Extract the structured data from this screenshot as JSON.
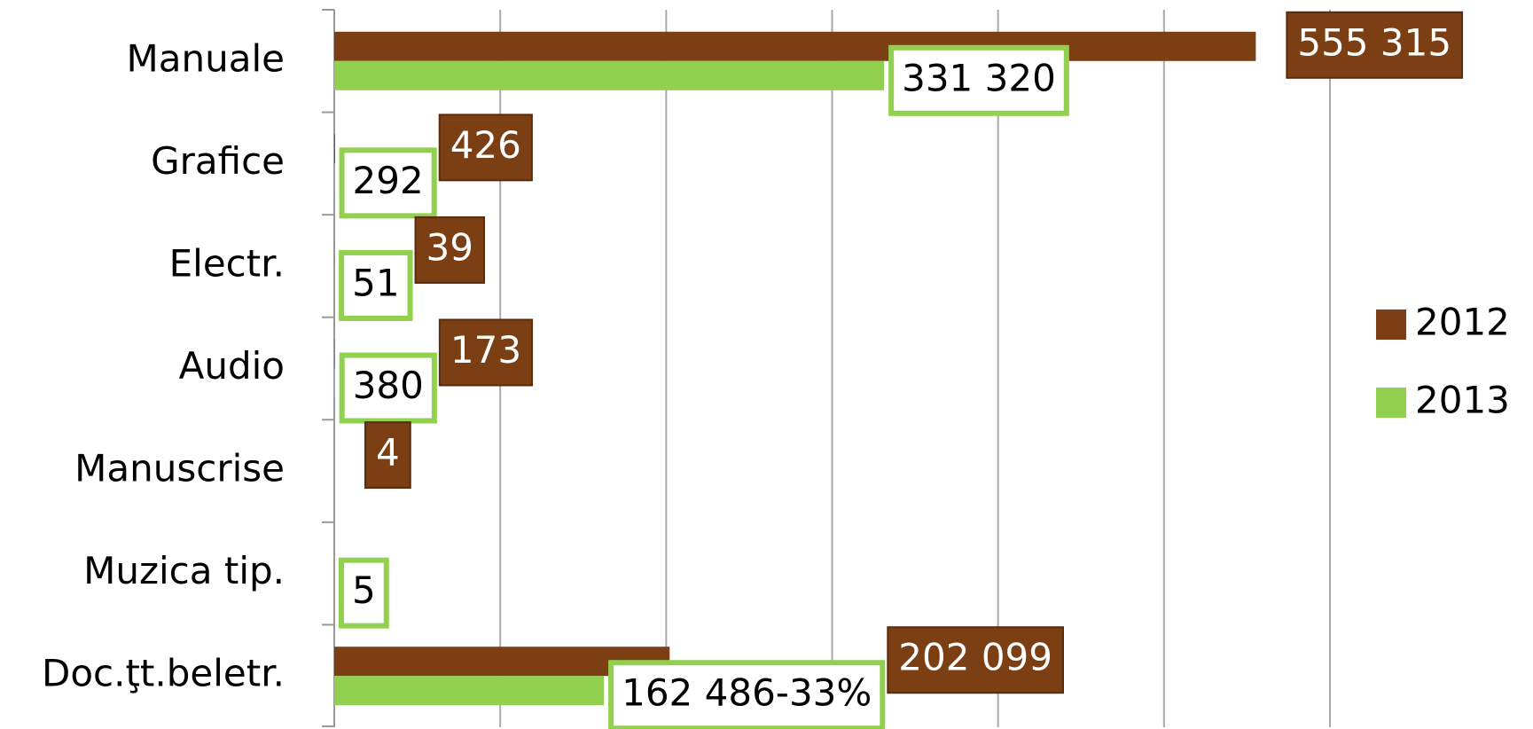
{
  "chart_data": {
    "type": "hbar",
    "categories": [
      "Manuale",
      "Grafice",
      "Electr.",
      "Audio",
      "Manuscrise",
      "Muzica tip.",
      "Doc.ţt.beletr."
    ],
    "series": [
      {
        "name": "2012",
        "color": "#7b3f13",
        "values": [
          555315,
          426,
          39,
          173,
          4,
          null,
          202099
        ],
        "value_labels": [
          "555 315",
          "426",
          "39",
          "173",
          "4",
          null,
          "202 099"
        ]
      },
      {
        "name": "2013",
        "color": "#92d050",
        "values": [
          331320,
          292,
          51,
          380,
          null,
          5,
          162486
        ],
        "value_labels": [
          "331 320",
          "292",
          "51",
          "380",
          null,
          "5",
          "162 486-33%"
        ]
      }
    ],
    "xlim": [
      0,
      600000
    ],
    "xticks": [
      0,
      100000,
      200000,
      300000,
      400000,
      500000,
      600000
    ],
    "grid": true,
    "legend": "right"
  }
}
